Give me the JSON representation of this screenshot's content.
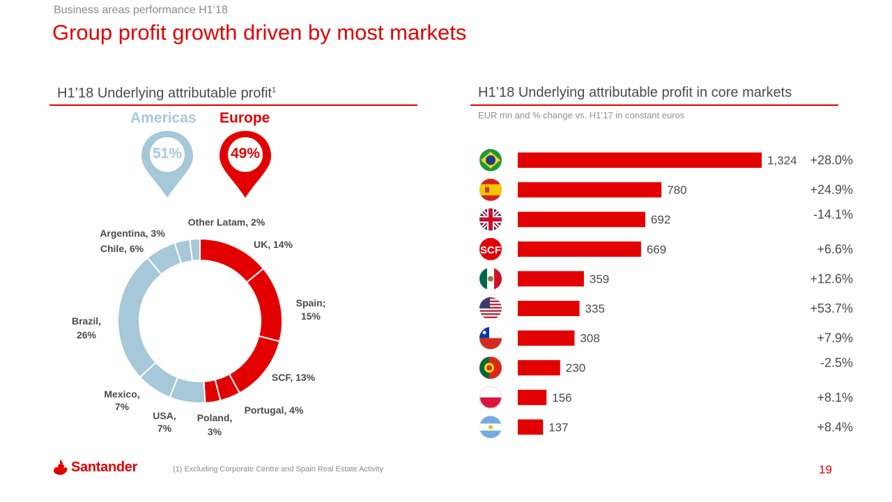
{
  "header": {
    "supertitle": "Business areas performance H1’18",
    "title": "Group profit growth driven by most markets"
  },
  "left_panel": {
    "title": "H1’18 Underlying attributable profit",
    "title_footnote_marker": "1",
    "regions": [
      {
        "name": "Americas",
        "share": "51%",
        "color": "#a6c8d8"
      },
      {
        "name": "Europe",
        "share": "49%",
        "color": "#e30000"
      }
    ]
  },
  "right_panel": {
    "title": "H1’18 Underlying attributable profit in core markets",
    "subtitle": "EUR mn and % change vs. H1’17 in constant euros"
  },
  "colors": {
    "accent": "#e30000",
    "americas": "#a6c8d8",
    "text": "#4a4a4a"
  },
  "chart_data": [
    {
      "type": "pie",
      "variant": "donut",
      "title": "H1’18 Underlying attributable profit",
      "start": "12 o'clock, clockwise",
      "slices": [
        {
          "label": "UK, 14%",
          "name": "UK",
          "value": 14,
          "group": "Europe"
        },
        {
          "label": "Spain; 15%",
          "name": "Spain",
          "value": 15,
          "group": "Europe"
        },
        {
          "label": "SCF, 13%",
          "name": "SCF",
          "value": 13,
          "group": "Europe"
        },
        {
          "label": "Portugal, 4%",
          "name": "Portugal",
          "value": 4,
          "group": "Europe"
        },
        {
          "label": "Poland, 3%",
          "name": "Poland",
          "value": 3,
          "group": "Europe"
        },
        {
          "label": "USA, 7%",
          "name": "USA",
          "value": 7,
          "group": "Americas"
        },
        {
          "label": "Mexico, 7%",
          "name": "Mexico",
          "value": 7,
          "group": "Americas"
        },
        {
          "label": "Brazil, 26%",
          "name": "Brazil",
          "value": 26,
          "group": "Americas"
        },
        {
          "label": "Chile, 6%",
          "name": "Chile",
          "value": 6,
          "group": "Americas"
        },
        {
          "label": "Argentina, 3%",
          "name": "Argentina",
          "value": 3,
          "group": "Americas"
        },
        {
          "label": "Other Latam, 2%",
          "name": "Other Latam",
          "value": 2,
          "group": "Americas"
        }
      ]
    },
    {
      "type": "bar",
      "orientation": "horizontal",
      "title": "H1’18 Underlying attributable profit in core markets",
      "unit": "EUR mn",
      "categories": [
        "Brazil",
        "Spain",
        "UK",
        "SCF",
        "Mexico",
        "USA",
        "Chile",
        "Portugal",
        "Poland",
        "Argentina"
      ],
      "values": [
        1324,
        780,
        692,
        669,
        359,
        335,
        308,
        230,
        156,
        137
      ],
      "value_labels": [
        "1,324",
        "780",
        "692",
        "669",
        "359",
        "335",
        "308",
        "230",
        "156",
        "137"
      ],
      "change_labels": [
        "+28.0%",
        "+24.9%",
        "-14.1%",
        "+6.6%",
        "+12.6%",
        "+53.7%",
        "+7.9%",
        "-2.5%",
        "+8.1%",
        "+8.4%"
      ],
      "icons": [
        "flag-brazil-icon",
        "flag-spain-icon",
        "flag-uk-icon",
        "scf-logo-icon",
        "flag-mexico-icon",
        "flag-usa-icon",
        "flag-chile-icon",
        "flag-portugal-icon",
        "flag-poland-icon",
        "flag-argentina-icon"
      ],
      "bar_color": "#e30000",
      "xlim": [
        0,
        1324
      ]
    }
  ],
  "footer": {
    "brand": "Santander",
    "footnote": "(1) Excluding Corporate Centre and Spain Real Estate Activity",
    "page_number": "19"
  }
}
